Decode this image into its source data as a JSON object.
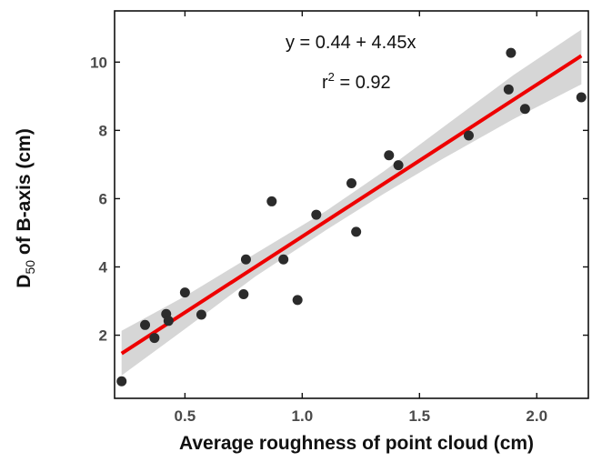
{
  "chart_data": {
    "type": "scatter",
    "xlabel": "Average roughness of point cloud (cm)",
    "ylabel": {
      "prefix": "D",
      "sub": "50",
      "suffix": " of B-axis (cm)"
    },
    "xlim": [
      0.2,
      2.22
    ],
    "ylim": [
      0.15,
      11.5
    ],
    "x_ticks": [
      0.5,
      1.0,
      1.5,
      2.0
    ],
    "x_tick_labels": [
      "0.5",
      "1.0",
      "1.5",
      "2.0"
    ],
    "y_ticks": [
      2,
      4,
      6,
      8,
      10
    ],
    "y_tick_labels": [
      "2",
      "4",
      "6",
      "8",
      "10"
    ],
    "grid": false,
    "legend": "none",
    "points": {
      "x": [
        0.23,
        0.33,
        0.37,
        0.42,
        0.43,
        0.5,
        0.57,
        0.75,
        0.76,
        0.87,
        0.92,
        0.98,
        1.06,
        1.21,
        1.23,
        1.37,
        1.41,
        1.71,
        1.88,
        1.89,
        1.95,
        2.19
      ],
      "y": [
        0.65,
        2.3,
        1.92,
        2.62,
        2.42,
        3.25,
        2.6,
        3.2,
        4.22,
        5.92,
        4.22,
        3.03,
        5.53,
        6.45,
        5.03,
        7.27,
        6.98,
        7.85,
        9.2,
        10.27,
        8.63,
        8.97
      ]
    },
    "fit": {
      "intercept": 0.44,
      "slope": 4.45,
      "x_range": [
        0.23,
        2.19
      ],
      "band": {
        "x": [
          0.23,
          0.5,
          0.8,
          1.1,
          1.35,
          1.6,
          1.9,
          2.19
        ],
        "lower": [
          0.82,
          2.18,
          3.72,
          5.07,
          6.15,
          7.17,
          8.33,
          9.35
        ],
        "upper": [
          2.13,
          3.14,
          4.39,
          5.63,
          6.81,
          8.09,
          9.62,
          10.95
        ]
      }
    },
    "annotations": {
      "equation": "y =  0.44 + 4.45x",
      "r2_label": "r",
      "r2_sup": "2",
      "r2_value": " =  0.92"
    },
    "colors": {
      "points": "#2b2b2b",
      "fit_line": "#ee0000",
      "band": "#d6d6d6",
      "axes": "#111111",
      "tick_labels": "#4a4a4a"
    }
  }
}
